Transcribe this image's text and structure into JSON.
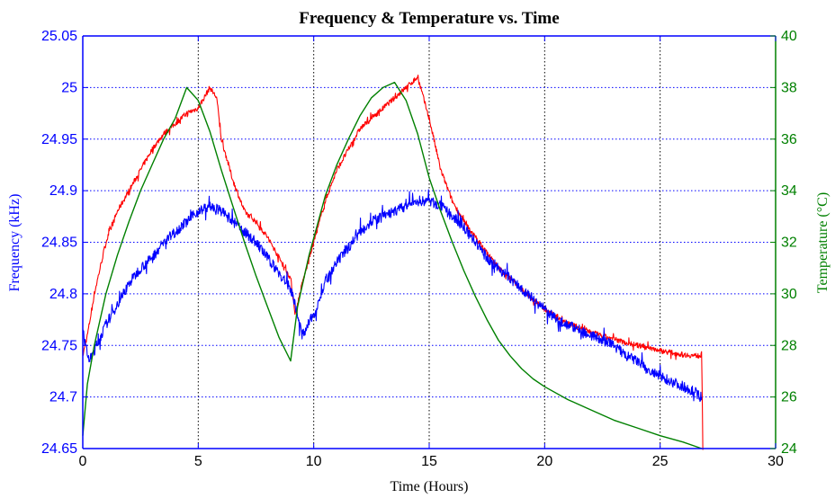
{
  "chart_data": {
    "type": "line",
    "title": "Frequency & Temperature vs. Time",
    "xlabel": "Time (Hours)",
    "ylabel_left": "Frequency (kHz)",
    "ylabel_right": "Temperature (°C)",
    "xlim": [
      0,
      30
    ],
    "ylim_left": [
      24.65,
      25.05
    ],
    "ylim_right": [
      24,
      40
    ],
    "x_ticks": [
      "0",
      "5",
      "10",
      "15",
      "20",
      "25",
      "30"
    ],
    "y_left_ticks": [
      "24.65",
      "24.7",
      "24.75",
      "24.8",
      "24.85",
      "24.9",
      "24.95",
      "25",
      "25.05"
    ],
    "y_right_ticks": [
      "24",
      "26",
      "28",
      "30",
      "32",
      "34",
      "36",
      "38",
      "40"
    ],
    "grid": {
      "x": "black-dotted",
      "y": "blue-dotted"
    },
    "colors": {
      "frequency_blue": "#0000ff",
      "frequency_red": "#ff0000",
      "temperature": "#008000"
    },
    "series": [
      {
        "axis": "left",
        "color": "#0000ff",
        "noise": 0.01,
        "x": [
          0,
          0.1,
          0.3,
          0.5,
          1,
          1.5,
          2,
          2.5,
          3,
          3.5,
          4,
          4.5,
          5,
          5.5,
          6,
          6.5,
          7,
          7.5,
          8,
          8.5,
          9,
          9.2,
          9.5,
          10,
          10.5,
          11,
          11.5,
          12,
          12.5,
          13,
          13.5,
          14,
          14.5,
          15,
          15.5,
          16,
          16.5,
          17,
          17.5,
          18,
          18.5,
          19,
          19.5,
          20,
          20.5,
          21,
          21.5,
          22,
          22.5,
          23,
          23.5,
          24,
          24.5,
          25,
          25.5,
          26,
          26.5,
          26.8
        ],
        "y": [
          24.77,
          24.75,
          24.735,
          24.745,
          24.77,
          24.79,
          24.81,
          24.825,
          24.835,
          24.85,
          24.86,
          24.87,
          24.88,
          24.885,
          24.88,
          24.87,
          24.86,
          24.85,
          24.835,
          24.82,
          24.805,
          24.79,
          24.76,
          24.78,
          24.81,
          24.83,
          24.845,
          24.86,
          24.87,
          24.875,
          24.88,
          24.885,
          24.89,
          24.89,
          24.885,
          24.875,
          24.865,
          24.85,
          24.835,
          24.825,
          24.815,
          24.805,
          24.795,
          24.785,
          24.775,
          24.77,
          24.765,
          24.76,
          24.755,
          24.75,
          24.74,
          24.735,
          24.725,
          24.72,
          24.715,
          24.71,
          24.705,
          24.7
        ]
      },
      {
        "axis": "left",
        "color": "#ff0000",
        "noise": 0.005,
        "x": [
          0,
          0.2,
          0.5,
          1,
          1.5,
          2,
          2.5,
          3,
          3.5,
          4,
          4.5,
          5,
          5.5,
          5.8,
          6,
          6.5,
          7,
          7.5,
          8,
          8.5,
          9,
          9.2,
          9.5,
          10,
          10.5,
          11,
          11.5,
          12,
          12.5,
          13,
          13.5,
          14,
          14.5,
          15,
          15.5,
          16,
          16.5,
          17,
          17.5,
          18,
          18.5,
          19,
          19.5,
          20,
          20.5,
          21,
          21.5,
          22,
          22.5,
          23,
          23.5,
          24,
          24.5,
          25,
          25.5,
          26,
          26.5,
          26.8,
          26.85
        ],
        "y": [
          24.74,
          24.76,
          24.8,
          24.85,
          24.88,
          24.9,
          24.92,
          24.94,
          24.955,
          24.965,
          24.975,
          24.98,
          25.0,
          24.99,
          24.95,
          24.91,
          24.88,
          24.87,
          24.855,
          24.835,
          24.815,
          24.78,
          24.81,
          24.85,
          24.89,
          24.92,
          24.94,
          24.96,
          24.97,
          24.98,
          24.99,
          25.0,
          25.01,
          24.97,
          24.92,
          24.89,
          24.87,
          24.855,
          24.84,
          24.825,
          24.815,
          24.805,
          24.795,
          24.785,
          24.778,
          24.772,
          24.767,
          24.763,
          24.759,
          24.756,
          24.753,
          24.75,
          24.748,
          24.745,
          24.743,
          24.741,
          24.74,
          24.74,
          24.65
        ]
      },
      {
        "axis": "right",
        "color": "#008000",
        "noise": 0,
        "x": [
          0,
          0.2,
          0.5,
          1,
          1.5,
          2,
          2.5,
          3,
          3.5,
          4,
          4.5,
          5,
          5.5,
          6,
          6.5,
          7,
          7.5,
          8,
          8.5,
          9,
          9.3,
          9.8,
          10.5,
          11,
          11.5,
          12,
          12.5,
          13,
          13.5,
          14,
          14.5,
          15,
          15.5,
          16,
          16.5,
          17,
          17.5,
          18,
          18.5,
          19,
          19.5,
          20,
          21,
          22,
          23,
          24,
          25,
          26,
          26.8
        ],
        "y": [
          24.5,
          26.5,
          28,
          30,
          31.5,
          32.8,
          34,
          35,
          36,
          36.8,
          38,
          37.5,
          36.3,
          34.8,
          33.4,
          32.0,
          30.7,
          29.5,
          28.3,
          27.4,
          29.5,
          31.5,
          33.8,
          35.0,
          36.0,
          36.9,
          37.6,
          38.0,
          38.2,
          37.5,
          36.2,
          34.5,
          33.2,
          32.0,
          30.9,
          29.9,
          29.0,
          28.2,
          27.6,
          27.1,
          26.7,
          26.4,
          25.9,
          25.5,
          25.1,
          24.8,
          24.5,
          24.25,
          24.0
        ]
      }
    ]
  }
}
